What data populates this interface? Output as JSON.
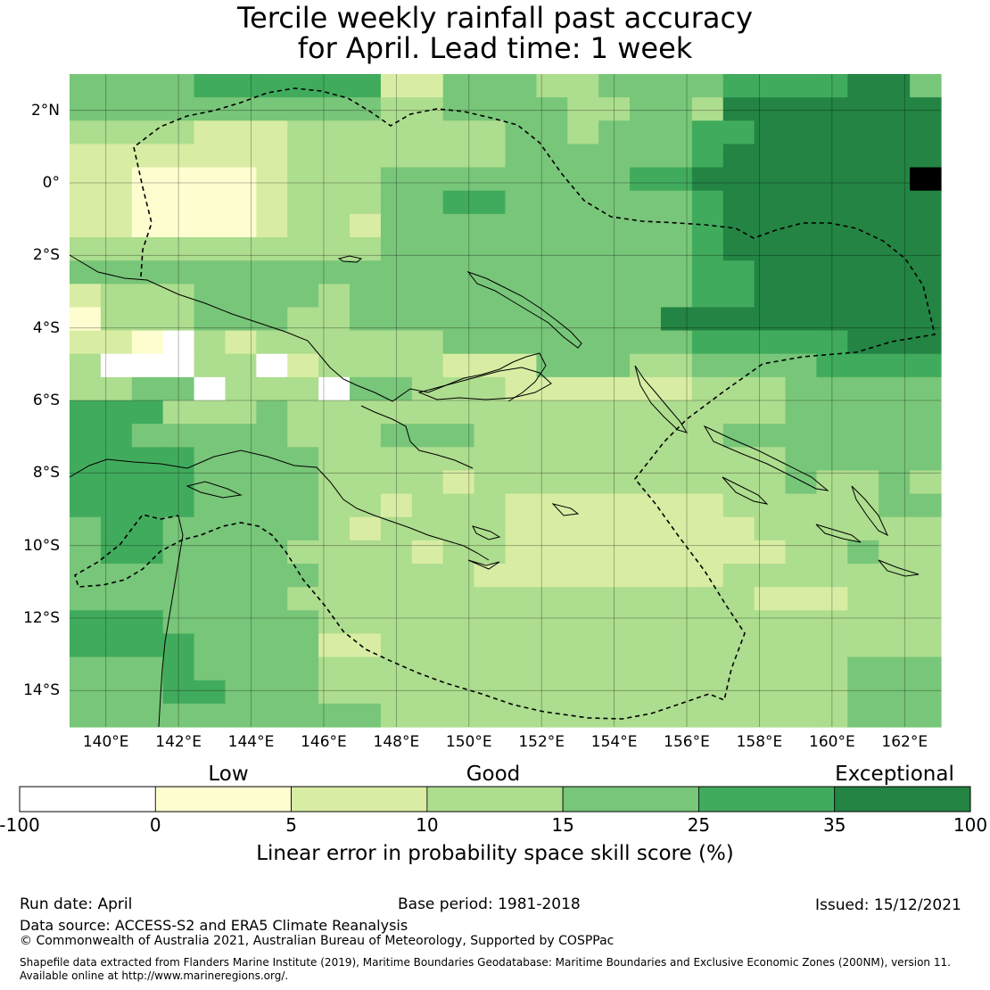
{
  "title": {
    "line1": "Tercile weekly rainfall past accuracy",
    "line2": "for April. Lead time: 1 week"
  },
  "map": {
    "lon_range": [
      139,
      163
    ],
    "lat_range": [
      -15,
      3
    ],
    "y_ticks": [
      {
        "lat": 2,
        "label": "2°N"
      },
      {
        "lat": 0,
        "label": "0°"
      },
      {
        "lat": -2,
        "label": "2°S"
      },
      {
        "lat": -4,
        "label": "4°S"
      },
      {
        "lat": -6,
        "label": "6°S"
      },
      {
        "lat": -8,
        "label": "8°S"
      },
      {
        "lat": -10,
        "label": "10°S"
      },
      {
        "lat": -12,
        "label": "12°S"
      },
      {
        "lat": -14,
        "label": "14°S"
      }
    ],
    "x_ticks": [
      {
        "lon": 140,
        "label": "140°E"
      },
      {
        "lon": 142,
        "label": "142°E"
      },
      {
        "lon": 144,
        "label": "144°E"
      },
      {
        "lon": 146,
        "label": "146°E"
      },
      {
        "lon": 148,
        "label": "148°E"
      },
      {
        "lon": 150,
        "label": "150°E"
      },
      {
        "lon": 152,
        "label": "152°E"
      },
      {
        "lon": 154,
        "label": "154°E"
      },
      {
        "lon": 156,
        "label": "156°E"
      },
      {
        "lon": 158,
        "label": "158°E"
      },
      {
        "lon": 160,
        "label": "160°E"
      },
      {
        "lon": 162,
        "label": "162°E"
      }
    ],
    "grid_rows": [
      "4444555555224443344445555664",
      "4444444444334444334436666666",
      "3333222333333344344455666666",
      "2222222333333344444456666666",
      "2211112333444444445566666667",
      "2211112333445544444456666666",
      "2211112332444444444456666666",
      "3333333333444444444456666666",
      "4444444444444444444455666666",
      "2333444434444444444455666666",
      "1333444334444444444666666666",
      "2210323333334444444455555666",
      "3000330233332224443344445555",
      "3344033304433322222233344444",
      "5553334333333333333333344444",
      "5544444333444333333334444444",
      "5555444433333333333333344444",
      "5555444433332333333333343343",
      "5555444433233322222223333344",
      "4554444432333322222222333333",
      "4554444333323322222222233433",
      "4444444433333222222223333333",
      "4444444333333333333333222333",
      "5554444433333333333333333333",
      "5555444422333333333333333333",
      "4445444433333333333333333444",
      "4445544433333333333333333444",
      "4444444444333333333333333444"
    ],
    "colors": [
      "#ffffff",
      "#fefdd0",
      "#d8eda3",
      "#addd8e",
      "#78c679",
      "#41ab5d",
      "#238443"
    ]
  },
  "categories": [
    "Low",
    "Good",
    "Exceptional"
  ],
  "colorbar": {
    "boundaries": [
      -100,
      0,
      5,
      10,
      15,
      25,
      35,
      100
    ],
    "tick_labels": [
      "-100",
      "0",
      "5",
      "10",
      "15",
      "25",
      "35",
      "100"
    ],
    "colors": [
      "#ffffff",
      "#fefdd0",
      "#d8eda3",
      "#addd8e",
      "#78c679",
      "#41ab5d",
      "#238443"
    ],
    "label": "Linear error in probability space skill score (%)"
  },
  "footer": {
    "run_date": "Run date: April",
    "base_period": "Base period: 1981-2018",
    "issued": "Issued: 15/12/2021",
    "data_source": "Data source: ACCESS-S2 and ERA5 Climate Reanalysis",
    "copyright": "© Commonwealth of Australia 2021, Australian Bureau of Meteorology, Supported by COSPPac",
    "shapefile_line1": "Shapefile data extracted from Flanders Marine Institute (2019), Maritime Boundaries Geodatabase: Maritime Boundaries and Exclusive Economic Zones (200NM), version 11.",
    "shapefile_line2": "Available online at http://www.marineregions.org/."
  }
}
